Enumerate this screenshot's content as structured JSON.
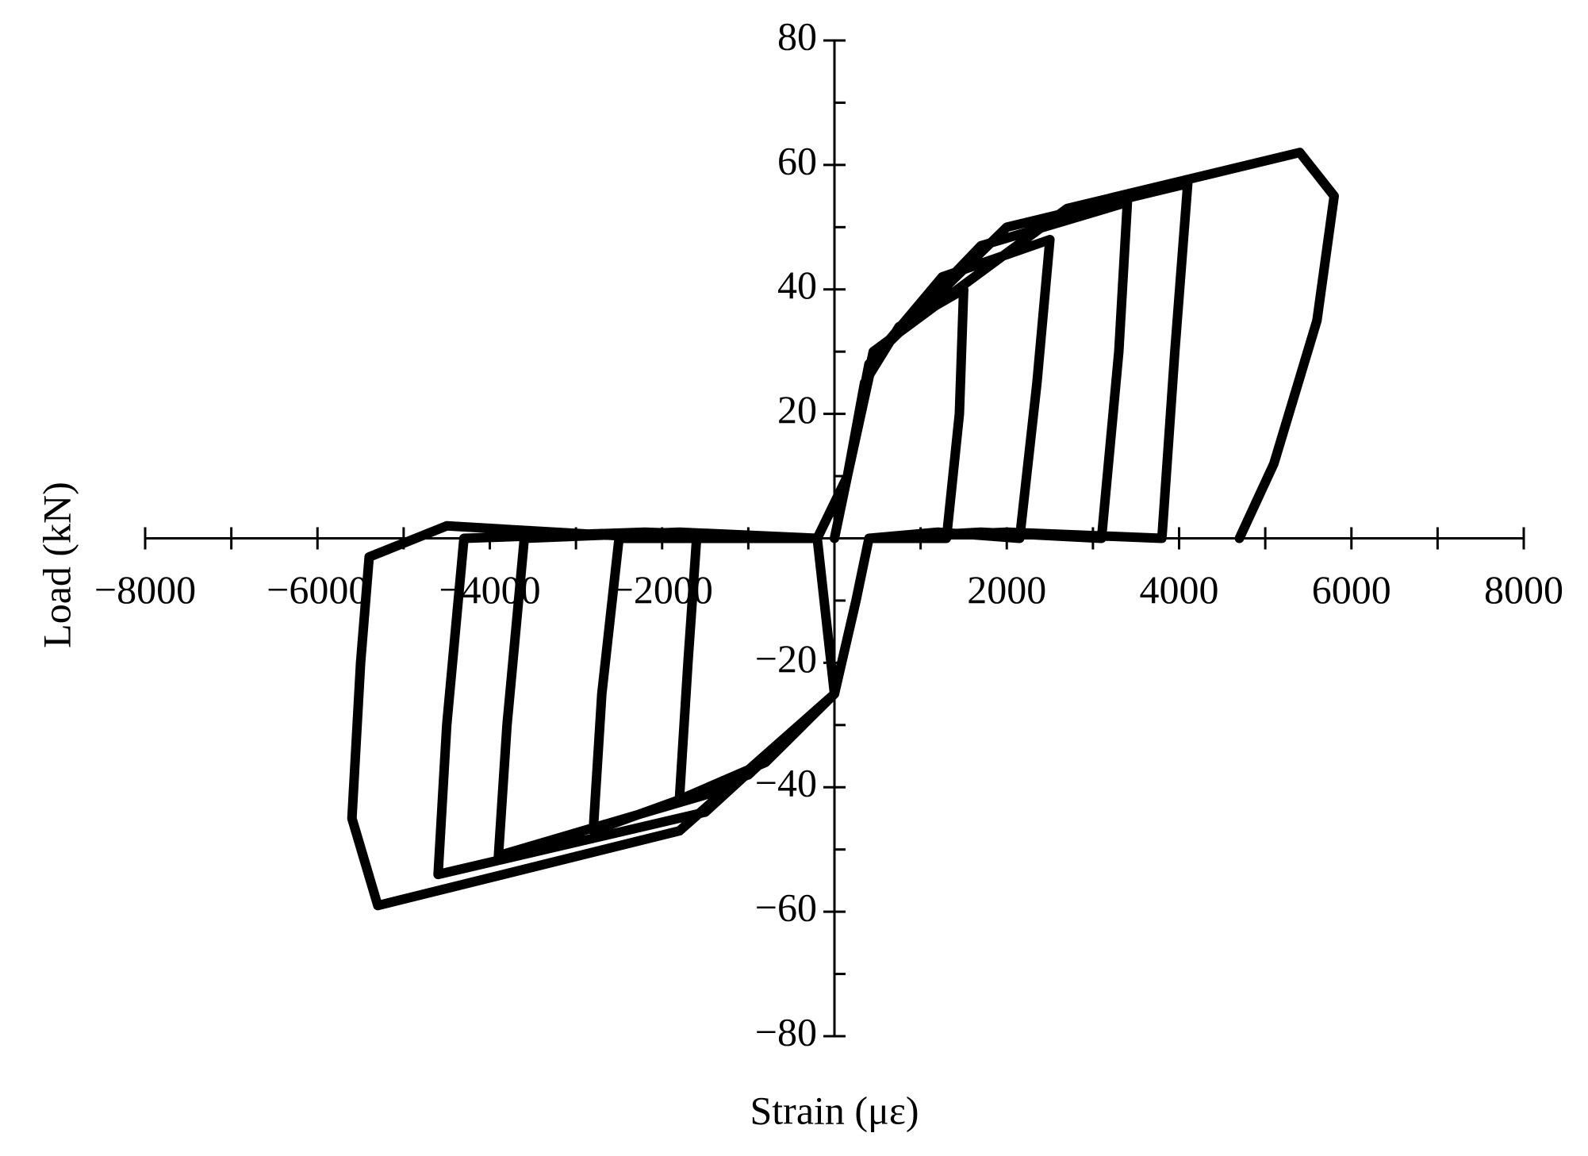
{
  "chart_data": {
    "type": "line",
    "xlabel": "Strain (με)",
    "ylabel": "Load (kN)",
    "x": [
      0,
      150,
      350,
      750,
      1500,
      1450,
      1300,
      800,
      400,
      250,
      0,
      -800,
      -1800,
      -1700,
      -1600,
      -900,
      -200,
      150,
      400,
      1250,
      2500,
      2350,
      2150,
      1200,
      400,
      250,
      0,
      -1000,
      -2800,
      -2700,
      -2500,
      -1400,
      -200,
      150,
      450,
      1700,
      3400,
      3300,
      3100,
      1700,
      400,
      250,
      0,
      -1200,
      -3900,
      -3800,
      -3600,
      -1800,
      -200,
      150,
      450,
      2000,
      4100,
      3950,
      3800,
      2000,
      400,
      250,
      0,
      -1500,
      -4600,
      -4500,
      -4300,
      -2200,
      -200,
      0,
      -1800,
      -5300,
      -5600,
      -5500,
      -5400,
      -4500,
      -2000,
      -200,
      150,
      450,
      2700,
      5400,
      5800,
      5600,
      5100,
      4700
    ],
    "values": [
      0,
      10,
      25,
      34,
      40,
      20,
      0,
      0,
      0,
      -10,
      -25,
      -36,
      -42,
      -20,
      0,
      0,
      0,
      10,
      28,
      42,
      48,
      25,
      0,
      1,
      0,
      -10,
      -25,
      -38,
      -47,
      -25,
      0,
      0,
      0,
      10,
      29,
      47,
      54,
      30,
      0,
      1,
      0,
      -10,
      -25,
      -40,
      -51,
      -30,
      0,
      1,
      0,
      10,
      29,
      50,
      57,
      30,
      0,
      1,
      0,
      -10,
      -25,
      -44,
      -54,
      -30,
      0,
      1,
      0,
      -25,
      -47,
      -59,
      -45,
      -20,
      -3,
      2,
      0,
      0,
      10,
      30,
      53,
      62,
      55,
      35,
      12,
      0
    ],
    "color": "#000000",
    "xlim": [
      -8000,
      8000
    ],
    "ylim": [
      -80,
      80
    ],
    "xticks": [
      {
        "value": -8000,
        "label": "−8000"
      },
      {
        "value": -6000,
        "label": "−6000"
      },
      {
        "value": -4000,
        "label": "−4000"
      },
      {
        "value": -2000,
        "label": "−2000"
      },
      2000,
      4000,
      6000,
      8000
    ],
    "yticks": [
      80,
      60,
      40,
      20,
      {
        "value": -20,
        "label": "−20"
      },
      {
        "value": -40,
        "label": "−40"
      },
      {
        "value": -60,
        "label": "−60"
      },
      {
        "value": -80,
        "label": "−80"
      }
    ],
    "xminorticks": [
      -7000,
      -5000,
      -3000,
      -1000,
      1000,
      3000,
      5000,
      7000
    ],
    "yminorticks": [
      70,
      50,
      30,
      10,
      -10,
      -30,
      -50,
      -70
    ]
  }
}
